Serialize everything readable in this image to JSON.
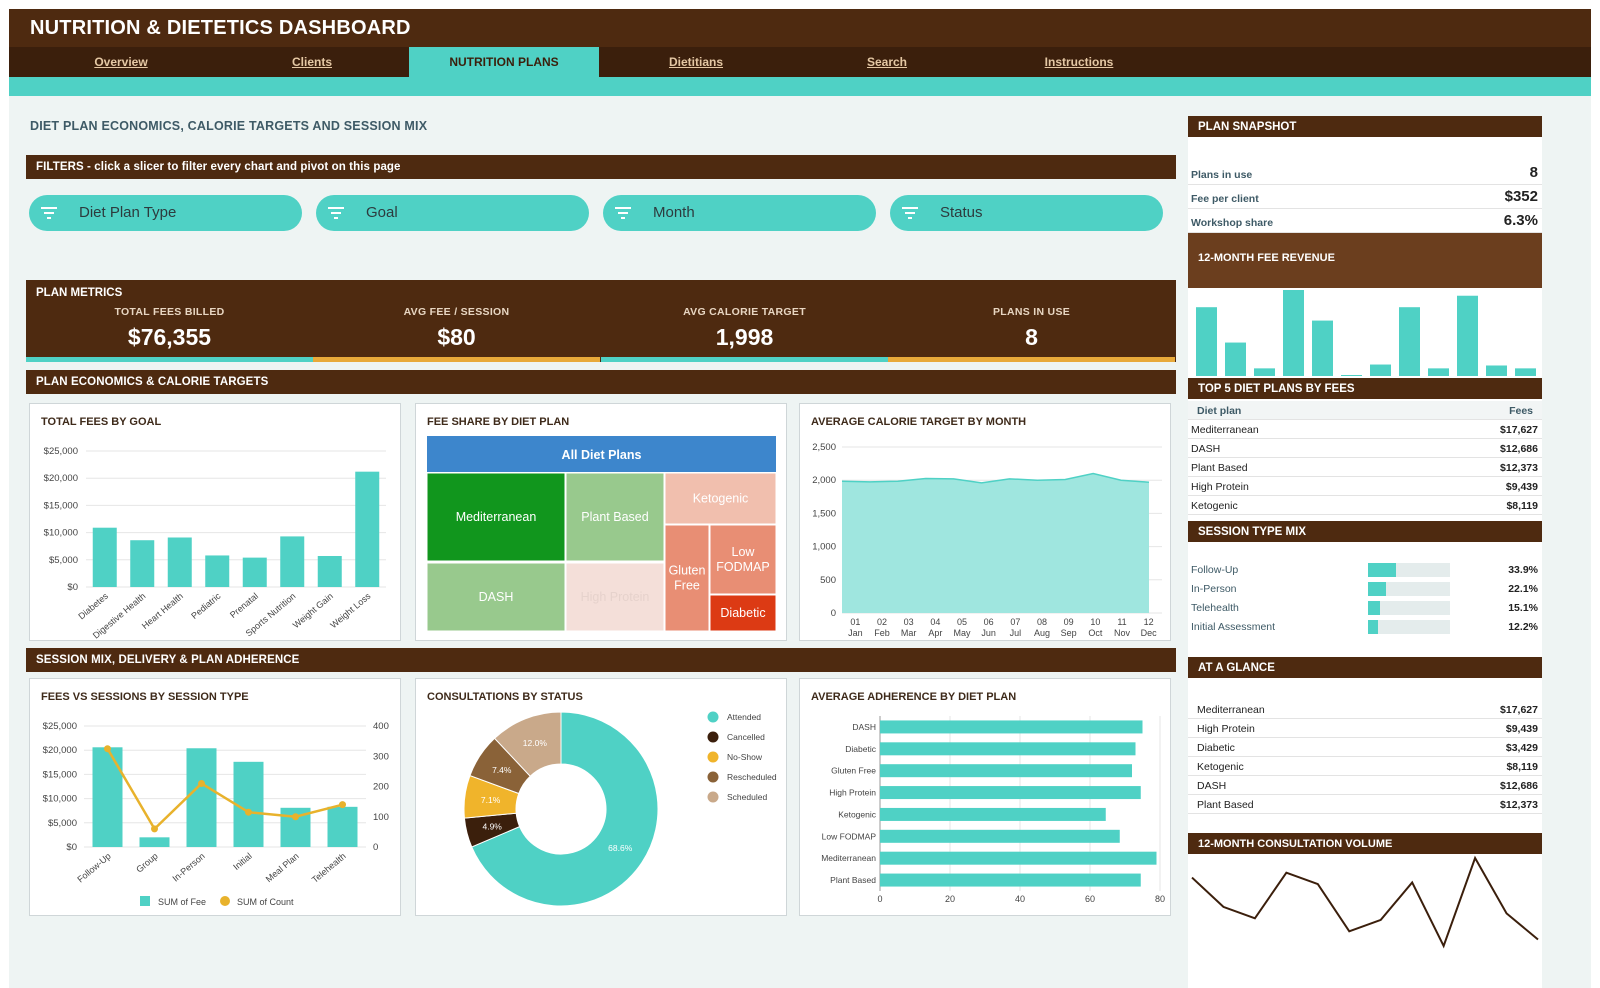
{
  "app": {
    "title": "NUTRITION & DIETETICS DASHBOARD"
  },
  "tabs": [
    {
      "label": "Overview"
    },
    {
      "label": "Clients"
    },
    {
      "label": "NUTRITION PLANS",
      "active": true
    },
    {
      "label": "Dietitians"
    },
    {
      "label": "Search"
    },
    {
      "label": "Instructions"
    }
  ],
  "page": {
    "heading": "DIET PLAN ECONOMICS, CALORIE TARGETS AND SESSION MIX"
  },
  "filters": {
    "header": "FILTERS  -  click a slicer to filter every chart and pivot on this page",
    "slicers": [
      "Diet Plan Type",
      "Goal",
      "Month",
      "Status"
    ],
    "icon": "filter-icon"
  },
  "metrics": {
    "header": "PLAN METRICS",
    "kpis": [
      {
        "label": "TOTAL FEES BILLED",
        "value": "$76,355"
      },
      {
        "label": "AVG FEE / SESSION",
        "value": "$80"
      },
      {
        "label": "AVG CALORIE TARGET",
        "value": "1,998"
      },
      {
        "label": "PLANS IN USE",
        "value": "8"
      }
    ]
  },
  "sections": {
    "economics": "PLAN ECONOMICS & CALORIE TARGETS",
    "session": "SESSION MIX, DELIVERY & PLAN ADHERENCE"
  },
  "colors": {
    "teal": "#4fd1c5",
    "brown": "#4e2a10",
    "dark_brown": "#3b1f0c",
    "orange": "#e8a93a"
  },
  "chart_data": [
    {
      "id": "fees_by_goal",
      "type": "bar",
      "title": "TOTAL FEES BY GOAL",
      "categories": [
        "Diabetes",
        "Digestive Health",
        "Heart Health",
        "Pediatric",
        "Prenatal",
        "Sports Nutrition",
        "Weight Gain",
        "Weight Loss"
      ],
      "values": [
        10900,
        8600,
        9100,
        5800,
        5400,
        9300,
        5700,
        21200
      ],
      "yticks": [
        "$25,000",
        "$20,000",
        "$15,000",
        "$10,000",
        "$5,000",
        "$0"
      ],
      "ylim": [
        0,
        25000
      ]
    },
    {
      "id": "fee_share_treemap",
      "type": "treemap",
      "title": "FEE SHARE BY DIET PLAN",
      "root": "All Diet Plans",
      "items": [
        {
          "name": "Mediterranean",
          "color": "#11961d"
        },
        {
          "name": "DASH",
          "color": "#98c98d"
        },
        {
          "name": "Plant Based",
          "color": "#98c98d"
        },
        {
          "name": "High Protein",
          "color": "#f4dfd9"
        },
        {
          "name": "Ketogenic",
          "color": "#f1bfae"
        },
        {
          "name": "Gluten Free",
          "color": "#e88e74"
        },
        {
          "name": "Low FODMAP",
          "color": "#e88e74"
        },
        {
          "name": "Diabetic",
          "color": "#dc3a14"
        }
      ]
    },
    {
      "id": "calorie_by_month",
      "type": "area",
      "title": "AVERAGE CALORIE TARGET BY MONTH",
      "x": [
        "01",
        "02",
        "03",
        "04",
        "05",
        "06",
        "07",
        "08",
        "09",
        "10",
        "11",
        "12"
      ],
      "x_sub": [
        "Jan",
        "Feb",
        "Mar",
        "Apr",
        "May",
        "Jun",
        "Jul",
        "Aug",
        "Sep",
        "Oct",
        "Nov",
        "Dec"
      ],
      "values": [
        1985,
        1975,
        1985,
        2025,
        2020,
        1960,
        2020,
        2000,
        2010,
        2100,
        2000,
        1970
      ],
      "yticks": [
        "2,500",
        "2,000",
        "1,500",
        "1,000",
        "500",
        "0"
      ],
      "ylim": [
        0,
        2500
      ]
    },
    {
      "id": "fees_vs_sessions",
      "type": "bar",
      "title": "FEES VS SESSIONS BY SESSION TYPE",
      "categories": [
        "Follow-Up",
        "Group",
        "In-Person",
        "Initial",
        "Meal Plan",
        "Telehealth"
      ],
      "series": [
        {
          "name": "SUM of Fee",
          "values": [
            20600,
            2000,
            20400,
            17600,
            8100,
            8300
          ],
          "axis": "left"
        },
        {
          "name": "SUM of Count",
          "values": [
            325,
            60,
            210,
            115,
            100,
            140
          ],
          "axis": "right"
        }
      ],
      "yticks_left": [
        "$25,000",
        "$20,000",
        "$15,000",
        "$10,000",
        "$5,000",
        "$0"
      ],
      "yticks_right": [
        "400",
        "300",
        "200",
        "100",
        "0"
      ],
      "ylim_left": [
        0,
        25000
      ],
      "ylim_right": [
        0,
        400
      ]
    },
    {
      "id": "consultations_by_status",
      "type": "pie",
      "title": "CONSULTATIONS BY STATUS",
      "slices": [
        {
          "name": "Attended",
          "value": 68.6,
          "label": "68.6%",
          "color": "#4fd1c5"
        },
        {
          "name": "Cancelled",
          "value": 4.9,
          "label": "4.9%",
          "color": "#3b1f0c"
        },
        {
          "name": "No-Show",
          "value": 7.1,
          "label": "7.1%",
          "color": "#f0b42b"
        },
        {
          "name": "Rescheduled",
          "value": 7.4,
          "label": "7.4%",
          "color": "#8a6238"
        },
        {
          "name": "Scheduled",
          "value": 12.0,
          "label": "12.0%",
          "color": "#c9a98a"
        }
      ]
    },
    {
      "id": "adherence_by_plan",
      "type": "bar",
      "title": "AVERAGE ADHERENCE BY DIET PLAN",
      "categories": [
        "DASH",
        "Diabetic",
        "Gluten Free",
        "High Protein",
        "Ketogenic",
        "Low FODMAP",
        "Mediterranean",
        "Plant Based"
      ],
      "values": [
        75,
        73,
        72,
        74.5,
        64.5,
        68.5,
        79,
        74.5
      ],
      "xticks": [
        "0",
        "20",
        "40",
        "60",
        "80"
      ],
      "xlim": [
        0,
        80
      ]
    },
    {
      "id": "fee_revenue_12m",
      "type": "bar",
      "title": "12-MONTH FEE REVENUE",
      "values": [
        72,
        35,
        8,
        90,
        58,
        1,
        12,
        72,
        8,
        84,
        11,
        8
      ]
    },
    {
      "id": "consultation_volume_12m",
      "type": "line",
      "title": "12-MONTH CONSULTATION VOLUME",
      "values": [
        60,
        42,
        35,
        63,
        56,
        27,
        34,
        57,
        18,
        72,
        38,
        22
      ]
    }
  ],
  "side": {
    "snapshot": {
      "header": "PLAN SNAPSHOT",
      "rows": [
        {
          "label": "Plans in use",
          "value": "8"
        },
        {
          "label": "Fee per client",
          "value": "$352"
        },
        {
          "label": "Workshop share",
          "value": "6.3%"
        }
      ]
    },
    "revenue_header": "12-MONTH FEE REVENUE",
    "top5": {
      "header": "TOP 5 DIET PLANS BY FEES",
      "col_plan": "Diet plan",
      "col_fees": "Fees",
      "rows": [
        {
          "name": "Mediterranean",
          "fees": "$17,627"
        },
        {
          "name": "DASH",
          "fees": "$12,686"
        },
        {
          "name": "Plant Based",
          "fees": "$12,373"
        },
        {
          "name": "High Protein",
          "fees": "$9,439"
        },
        {
          "name": "Ketogenic",
          "fees": "$8,119"
        }
      ]
    },
    "session_mix": {
      "header": "SESSION TYPE MIX",
      "rows": [
        {
          "name": "Follow-Up",
          "pct": "33.9%",
          "value": 0.339
        },
        {
          "name": "In-Person",
          "pct": "22.1%",
          "value": 0.221
        },
        {
          "name": "Telehealth",
          "pct": "15.1%",
          "value": 0.151
        },
        {
          "name": "Initial Assessment",
          "pct": "12.2%",
          "value": 0.122
        }
      ]
    },
    "glance": {
      "header": "AT A GLANCE",
      "rows": [
        {
          "name": "Mediterranean",
          "fees": "$17,627"
        },
        {
          "name": "High Protein",
          "fees": "$9,439"
        },
        {
          "name": "Diabetic",
          "fees": "$3,429"
        },
        {
          "name": "Ketogenic",
          "fees": "$8,119"
        },
        {
          "name": "DASH",
          "fees": "$12,686"
        },
        {
          "name": "Plant Based",
          "fees": "$12,373"
        }
      ]
    },
    "volume_header": "12-MONTH CONSULTATION VOLUME"
  }
}
